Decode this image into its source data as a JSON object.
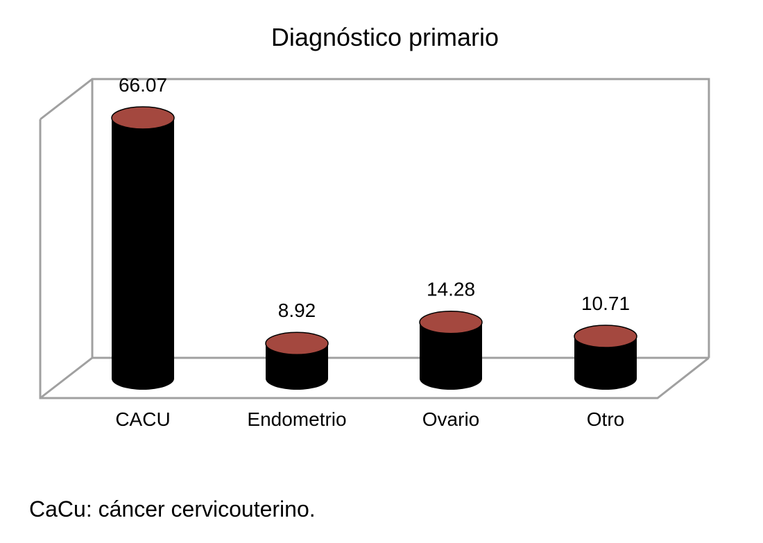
{
  "chart_data": {
    "type": "bar",
    "title": "Diagnóstico primario",
    "categories": [
      "CACU",
      "Endometrio",
      "Ovario",
      "Otro"
    ],
    "values": [
      66.07,
      8.92,
      14.28,
      10.71
    ],
    "value_labels": [
      "66.07",
      "8.92",
      "14.28",
      "10.71"
    ],
    "ylim": [
      0,
      70
    ],
    "grid": false,
    "legend": "none",
    "style": "3d-cylinder",
    "colors": {
      "body": "#000000",
      "top": "#a4483f",
      "frame": "#a0a0a0"
    }
  },
  "footnote": "CaCu: cáncer cervicouterino."
}
